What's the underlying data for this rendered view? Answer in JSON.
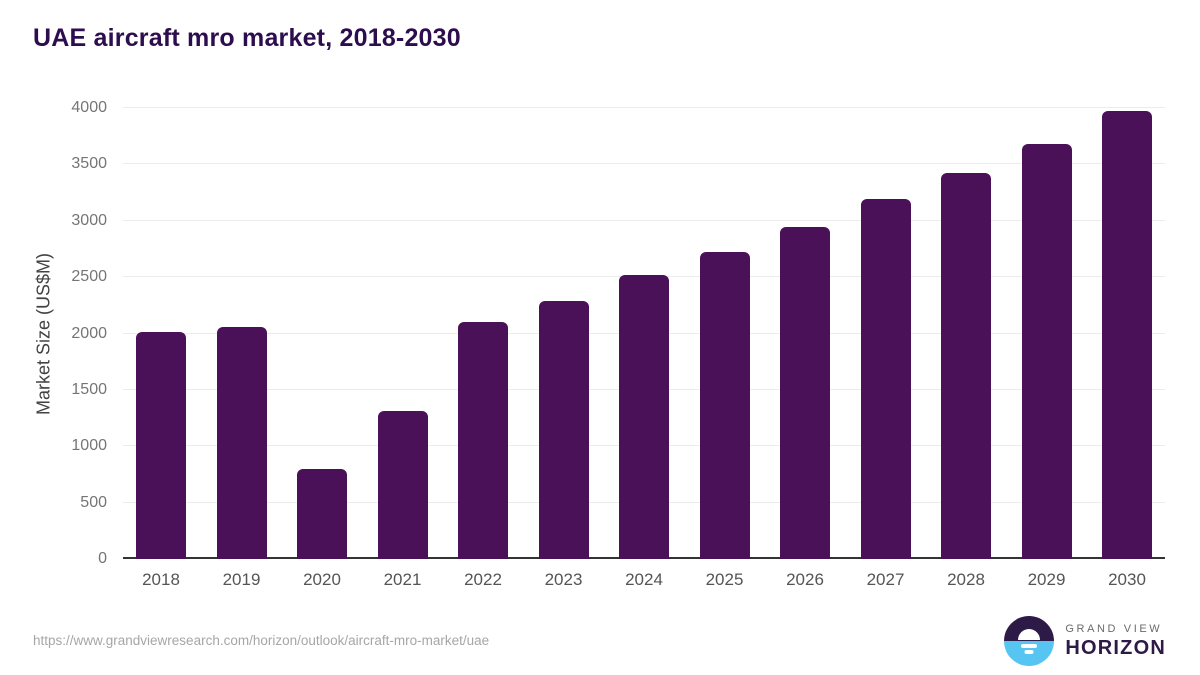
{
  "title": "UAE aircraft mro market, 2018-2030",
  "y_axis": {
    "label": "Market Size (US$M)"
  },
  "footer": {
    "source_url": "https://www.grandviewresearch.com/horizon/outlook/aircraft-mro-market/uae",
    "logo_line1": "GRAND VIEW",
    "logo_line2": "HORIZON"
  },
  "colors": {
    "bar": "#4a1158",
    "title_text": "#2d0d4e",
    "tick_text": "#757575",
    "x_label_text": "#555555",
    "axis_title_text": "#424242",
    "gridline": "#ececec",
    "axis_line": "#333333",
    "footer_text": "#a6a6a6",
    "logo_dark": "#2e1a47",
    "logo_blue": "#56c5f1"
  },
  "chart_data": {
    "type": "bar",
    "title": "UAE aircraft mro market, 2018-2030",
    "categories": [
      "2018",
      "2019",
      "2020",
      "2021",
      "2022",
      "2023",
      "2024",
      "2025",
      "2026",
      "2027",
      "2028",
      "2029",
      "2030"
    ],
    "values": [
      2010,
      2060,
      795,
      1310,
      2100,
      2290,
      2515,
      2725,
      2945,
      3190,
      3425,
      3685,
      3975
    ],
    "xlabel": "",
    "ylabel": "Market Size (US$M)",
    "ylim": [
      0,
      4000
    ],
    "ytick_step": 500,
    "yticks": [
      0,
      500,
      1000,
      1500,
      2000,
      2500,
      3000,
      3500,
      4000
    ],
    "grid": "horizontal",
    "legend": "none",
    "bar_color": "#4a1158"
  }
}
